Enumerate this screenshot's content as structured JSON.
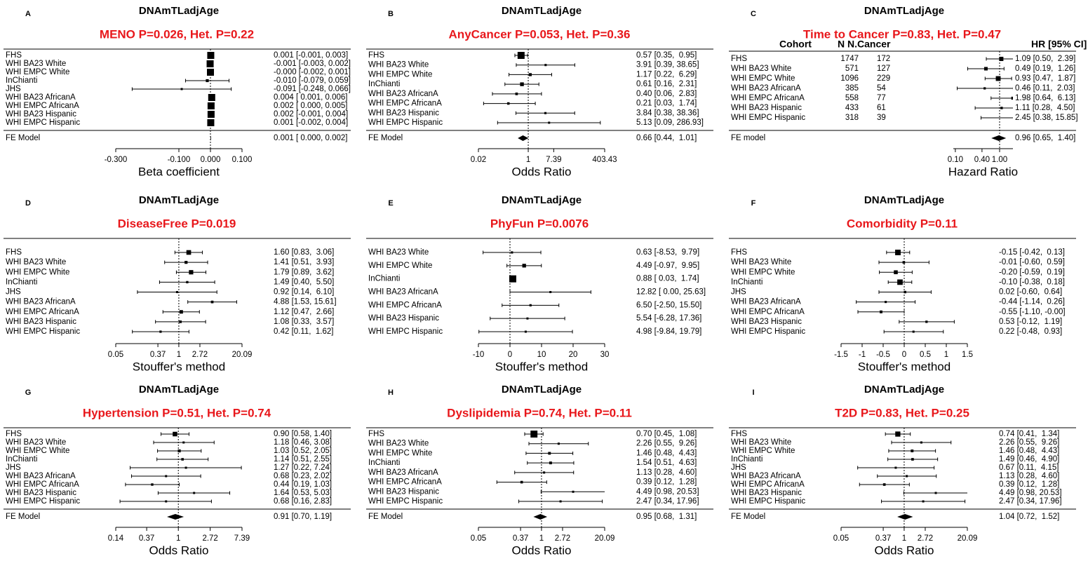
{
  "chart_data": [
    {
      "type": "forest",
      "panel": "A",
      "header": "DNAmTLadjAge",
      "title": "MENO P=0.026, Het. P=0.22",
      "xlabel": "Beta coefficient",
      "log_x": false,
      "xlim": [
        -0.3,
        0.1
      ],
      "xticks": [
        {
          "value": -0.3,
          "label": "-0.300"
        },
        {
          "value": -0.1,
          "label": "-0.100"
        },
        {
          "value": 0,
          "label": "0.000"
        },
        {
          "value": 0.1,
          "label": "0.100"
        }
      ],
      "categories": [
        "FHS",
        "WHI BA23 White",
        "WHI EMPC White",
        "InChianti",
        "JHS",
        "WHI BA23 AfricanA",
        "WHI EMPC AfricanA",
        "WHI BA23 Hispanic",
        "WHI EMPC Hispanic"
      ],
      "values": [
        0.001,
        -0.001,
        0,
        -0.01,
        -0.091,
        0.004,
        0.002,
        0.002,
        0.001
      ],
      "lower": [
        -0.001,
        -0.003,
        -0.002,
        -0.079,
        -0.248,
        0.001,
        0,
        -0.001,
        -0.002
      ],
      "upper": [
        0.003,
        0.002,
        0.001,
        0.059,
        0.066,
        0.006,
        0.005,
        0.004,
        0.004
      ],
      "value_labels": [
        "0.001 [-0.001, 0.003]",
        "-0.001 [-0.003, 0.002]",
        "-0.000 [-0.002, 0.001]",
        "-0.010 [-0.079, 0.059]",
        "-0.091 [-0.248, 0.066]",
        "0.004 [ 0.001, 0.006]",
        "0.002 [ 0.000, 0.005]",
        "0.002 [-0.001, 0.004]",
        "0.001 [-0.002, 0.004]"
      ],
      "summary_label": "FE Model",
      "summary_value": 0.001,
      "summary_lower": 0,
      "summary_upper": 0.002,
      "summary_value_label": "0.001 [ 0.000, 0.002]"
    },
    {
      "type": "forest",
      "panel": "B",
      "header": "DNAmTLadjAge",
      "title": "AnyCancer P=0.053, Het. P=0.36",
      "xlabel": "Odds Ratio",
      "log_x": true,
      "xlim": [
        0.02,
        403.43
      ],
      "xticks": [
        0.02,
        1,
        7.39,
        403.43
      ],
      "categories": [
        "FHS",
        "WHI BA23 White",
        "WHI EMPC White",
        "InChianti",
        "WHI BA23 AfricanA",
        "WHI EMPC AfricanA",
        "WHI BA23 Hispanic",
        "WHI EMPC Hispanic"
      ],
      "values": [
        0.57,
        3.91,
        1.17,
        0.61,
        0.4,
        0.21,
        3.84,
        5.13
      ],
      "lower": [
        0.35,
        0.39,
        0.22,
        0.16,
        0.06,
        0.03,
        0.38,
        0.09
      ],
      "upper": [
        0.95,
        38.65,
        6.29,
        2.31,
        2.83,
        1.74,
        38.36,
        286.93
      ],
      "value_labels": [
        "0.57 [0.35,  0.95]",
        "3.91 [0.39, 38.65]",
        "1.17 [0.22,  6.29]",
        "0.61 [0.16,  2.31]",
        "0.40 [0.06,  2.83]",
        "0.21 [0.03,  1.74]",
        "3.84 [0.38, 38.36]",
        "5.13 [0.09, 286.93]"
      ],
      "summary_label": "FE Model",
      "summary_value": 0.66,
      "summary_lower": 0.44,
      "summary_upper": 1.01,
      "summary_value_label": "0.66 [0.44,  1.01]"
    },
    {
      "type": "forest",
      "panel": "C",
      "header": "DNAmTLadjAge",
      "title": "Time to Cancer P=0.83, Het. P=0.47",
      "xlabel": "Hazard Ratio",
      "log_x": true,
      "xlim": [
        0.09,
        2.0
      ],
      "xticks": [
        {
          "value": 0.1,
          "label": "0.10"
        },
        {
          "value": 0.4,
          "label": "0.40"
        },
        {
          "value": 1,
          "label": "1.00"
        }
      ],
      "columns": [
        "Cohort",
        "N",
        "N.Cancer",
        "HR [95% CI]"
      ],
      "categories": [
        "FHS",
        "WHI BA23 White",
        "WHI EMPC White",
        "WHI BA23 AfricanA",
        "WHI EMPC AfricanA",
        "WHI BA23 Hispanic",
        "WHI EMPC Hispanic"
      ],
      "n": [
        1747,
        571,
        1096,
        385,
        558,
        433,
        318
      ],
      "n_cancer": [
        172,
        127,
        229,
        54,
        77,
        61,
        39
      ],
      "values": [
        1.09,
        0.49,
        0.93,
        0.46,
        1.98,
        1.11,
        2.45
      ],
      "lower": [
        0.5,
        0.19,
        0.47,
        0.11,
        0.64,
        0.28,
        0.38
      ],
      "upper": [
        2.39,
        1.26,
        1.87,
        2.03,
        6.13,
        4.5,
        15.85
      ],
      "value_labels": [
        "1.09 [0.50,  2.39]",
        "0.49 [0.19,  1.26]",
        "0.93 [0.47,  1.87]",
        "0.46 [0.11,  2.03]",
        "1.98 [0.64,  6.13]",
        "1.11 [0.28,  4.50]",
        "2.45 [0.38, 15.85]"
      ],
      "summary_label": "FE model",
      "summary_value": 0.96,
      "summary_lower": 0.65,
      "summary_upper": 1.4,
      "summary_value_label": "0.96 [0.65,  1.40]"
    },
    {
      "type": "forest",
      "panel": "D",
      "header": "DNAmTLadjAge",
      "title": "DiseaseFree P=0.019",
      "xlabel": "Stouffer's method",
      "log_x": true,
      "xlim": [
        0.05,
        20.09
      ],
      "xticks": [
        0.05,
        0.37,
        1,
        2.72,
        20.09
      ],
      "categories": [
        "FHS",
        "WHI BA23 White",
        "WHI EMPC White",
        "InChianti",
        "JHS",
        "WHI BA23 AfricanA",
        "WHI EMPC AfricanA",
        "WHI BA23 Hispanic",
        "WHI EMPC Hispanic"
      ],
      "values": [
        1.6,
        1.41,
        1.79,
        1.49,
        0.92,
        4.88,
        1.12,
        1.08,
        0.42
      ],
      "lower": [
        0.83,
        0.51,
        0.89,
        0.4,
        0.14,
        1.53,
        0.47,
        0.33,
        0.11
      ],
      "upper": [
        3.06,
        3.93,
        3.62,
        5.5,
        6.1,
        15.61,
        2.66,
        3.57,
        1.62
      ],
      "value_labels": [
        "1.60 [0.83,  3.06]",
        "1.41 [0.51,  3.93]",
        "1.79 [0.89,  3.62]",
        "1.49 [0.40,  5.50]",
        "0.92 [0.14,  6.10]",
        "4.88 [1.53, 15.61]",
        "1.12 [0.47,  2.66]",
        "1.08 [0.33,  3.57]",
        "0.42 [0.11,  1.62]"
      ]
    },
    {
      "type": "forest",
      "panel": "E",
      "header": "DNAmTLadjAge",
      "title": "PhyFun P=0.0076",
      "xlabel": "Stouffer's method",
      "log_x": false,
      "xlim": [
        -10,
        30
      ],
      "xticks": [
        -10,
        0,
        10,
        20,
        30
      ],
      "categories": [
        "WHI BA23 White",
        "WHI EMPC White",
        "InChianti",
        "WHI BA23 AfricanA",
        "WHI EMPC AfricanA",
        "WHI BA23 Hispanic",
        "WHI EMPC Hispanic"
      ],
      "values": [
        0.63,
        4.49,
        0.88,
        12.82,
        6.5,
        5.54,
        4.98
      ],
      "lower": [
        -8.53,
        -0.97,
        0.03,
        0,
        -2.5,
        -6.28,
        -9.84
      ],
      "upper": [
        9.79,
        9.95,
        1.74,
        25.63,
        15.5,
        17.36,
        19.79
      ],
      "value_labels": [
        "0.63 [-8.53,  9.79]",
        "4.49 [-0.97,  9.95]",
        "0.88 [ 0.03,  1.74]",
        "12.82 [ 0.00, 25.63]",
        "6.50 [-2.50, 15.50]",
        "5.54 [-6.28, 17.36]",
        "4.98 [-9.84, 19.79]"
      ]
    },
    {
      "type": "forest",
      "panel": "F",
      "header": "DNAmTLadjAge",
      "title": "Comorbidity P=0.11",
      "xlabel": "Stouffer's method",
      "log_x": false,
      "xlim": [
        -1.5,
        1.5
      ],
      "xticks": [
        -1.5,
        -1,
        -0.5,
        0,
        0.5,
        1,
        1.5
      ],
      "categories": [
        "FHS",
        "WHI BA23 White",
        "WHI EMPC White",
        "InChianti",
        "JHS",
        "WHI BA23 AfricanA",
        "WHI EMPC AfricanA",
        "WHI BA23 Hispanic",
        "WHI EMPC Hispanic"
      ],
      "values": [
        -0.15,
        -0.01,
        -0.2,
        -0.1,
        0.02,
        -0.44,
        -0.55,
        0.53,
        0.22
      ],
      "lower": [
        -0.42,
        -0.6,
        -0.59,
        -0.38,
        -0.6,
        -1.14,
        -1.1,
        -0.12,
        -0.48
      ],
      "upper": [
        0.13,
        0.59,
        0.19,
        0.18,
        0.64,
        0.26,
        0,
        1.19,
        0.93
      ],
      "value_labels": [
        "-0.15 [-0.42,  0.13]",
        "-0.01 [-0.60,  0.59]",
        "-0.20 [-0.59,  0.19]",
        "-0.10 [-0.38,  0.18]",
        "0.02 [-0.60,  0.64]",
        "-0.44 [-1.14,  0.26]",
        "-0.55 [-1.10, -0.00]",
        "0.53 [-0.12,  1.19]",
        "0.22 [-0.48,  0.93]"
      ]
    },
    {
      "type": "forest",
      "panel": "G",
      "header": "DNAmTLadjAge",
      "title": "Hypertension P=0.51, Het. P=0.74",
      "xlabel": "Odds Ratio",
      "log_x": true,
      "xlim": [
        0.14,
        7.39
      ],
      "xticks": [
        0.14,
        0.37,
        1,
        2.72,
        7.39
      ],
      "categories": [
        "FHS",
        "WHI BA23 White",
        "WHI EMPC White",
        "InChianti",
        "JHS",
        "WHI BA23 AfricanA",
        "WHI EMPC AfricanA",
        "WHI BA23 Hispanic",
        "WHI EMPC Hispanic"
      ],
      "values": [
        0.9,
        1.18,
        1.03,
        1.14,
        1.27,
        0.68,
        0.44,
        1.64,
        0.68
      ],
      "lower": [
        0.58,
        0.46,
        0.52,
        0.51,
        0.22,
        0.23,
        0.19,
        0.53,
        0.16
      ],
      "upper": [
        1.4,
        3.08,
        2.05,
        2.55,
        7.24,
        2.02,
        1.03,
        5.03,
        2.83
      ],
      "value_labels": [
        "0.90 [0.58, 1.40]",
        "1.18 [0.46, 3.08]",
        "1.03 [0.52, 2.05]",
        "1.14 [0.51, 2.55]",
        "1.27 [0.22, 7.24]",
        "0.68 [0.23, 2.02]",
        "0.44 [0.19, 1.03]",
        "1.64 [0.53, 5.03]",
        "0.68 [0.16, 2.83]"
      ],
      "summary_label": "FE Model",
      "summary_value": 0.91,
      "summary_lower": 0.7,
      "summary_upper": 1.19,
      "summary_value_label": "0.91 [0.70, 1.19]"
    },
    {
      "type": "forest",
      "panel": "H",
      "header": "DNAmTLadjAge",
      "title": "Dyslipidemia P=0.74, Het. P=0.11",
      "xlabel": "Odds Ratio",
      "log_x": true,
      "xlim": [
        0.05,
        20.09
      ],
      "xticks": [
        0.05,
        0.37,
        1,
        2.72,
        20.09
      ],
      "categories": [
        "FHS",
        "WHI BA23 White",
        "WHI EMPC White",
        "InChianti",
        "WHI BA23 AfricanA",
        "WHI EMPC AfricanA",
        "WHI BA23 Hispanic",
        "WHI EMPC Hispanic"
      ],
      "values": [
        0.7,
        2.26,
        1.46,
        1.54,
        1.13,
        0.39,
        4.49,
        2.47
      ],
      "lower": [
        0.45,
        0.55,
        0.48,
        0.51,
        0.28,
        0.12,
        0.98,
        0.34
      ],
      "upper": [
        1.08,
        9.26,
        4.43,
        4.63,
        4.6,
        1.28,
        20.53,
        17.96
      ],
      "value_labels": [
        "0.70 [0.45,  1.08]",
        "2.26 [0.55,  9.26]",
        "1.46 [0.48,  4.43]",
        "1.54 [0.51,  4.63]",
        "1.13 [0.28,  4.60]",
        "0.39 [0.12,  1.28]",
        "4.49 [0.98, 20.53]",
        "2.47 [0.34, 17.96]"
      ],
      "summary_label": "FE Model",
      "summary_value": 0.95,
      "summary_lower": 0.68,
      "summary_upper": 1.31,
      "summary_value_label": "0.95 [0.68,  1.31]"
    },
    {
      "type": "forest",
      "panel": "I",
      "header": "DNAmTLadjAge",
      "title": "T2D P=0.83, Het. P=0.25",
      "xlabel": "Odds Ratio",
      "log_x": true,
      "xlim": [
        0.05,
        20.09
      ],
      "xticks": [
        0.05,
        0.37,
        1,
        2.72,
        20.09
      ],
      "categories": [
        "FHS",
        "WHI BA23 White",
        "WHI EMPC White",
        "InChianti",
        "JHS",
        "WHI BA23 AfricanA",
        "WHI EMPC AfricanA",
        "WHI BA23 Hispanic",
        "WHI EMPC Hispanic"
      ],
      "values": [
        0.74,
        2.26,
        1.46,
        1.49,
        0.67,
        1.13,
        0.39,
        4.49,
        2.47
      ],
      "lower": [
        0.41,
        0.55,
        0.48,
        0.46,
        0.11,
        0.28,
        0.12,
        0.98,
        0.34
      ],
      "upper": [
        1.34,
        9.26,
        4.43,
        4.9,
        4.15,
        4.6,
        1.28,
        20.53,
        17.96
      ],
      "value_labels": [
        "0.74 [0.41,  1.34]",
        "2.26 [0.55,  9.26]",
        "1.46 [0.48,  4.43]",
        "1.49 [0.46,  4.90]",
        "0.67 [0.11,  4.15]",
        "1.13 [0.28,  4.60]",
        "0.39 [0.12,  1.28]",
        "4.49 [0.98, 20.53]",
        "2.47 [0.34, 17.96]"
      ],
      "summary_label": "FE Model",
      "summary_value": 1.04,
      "summary_lower": 0.72,
      "summary_upper": 1.52,
      "summary_value_label": "1.04 [0.72,  1.52]"
    }
  ]
}
